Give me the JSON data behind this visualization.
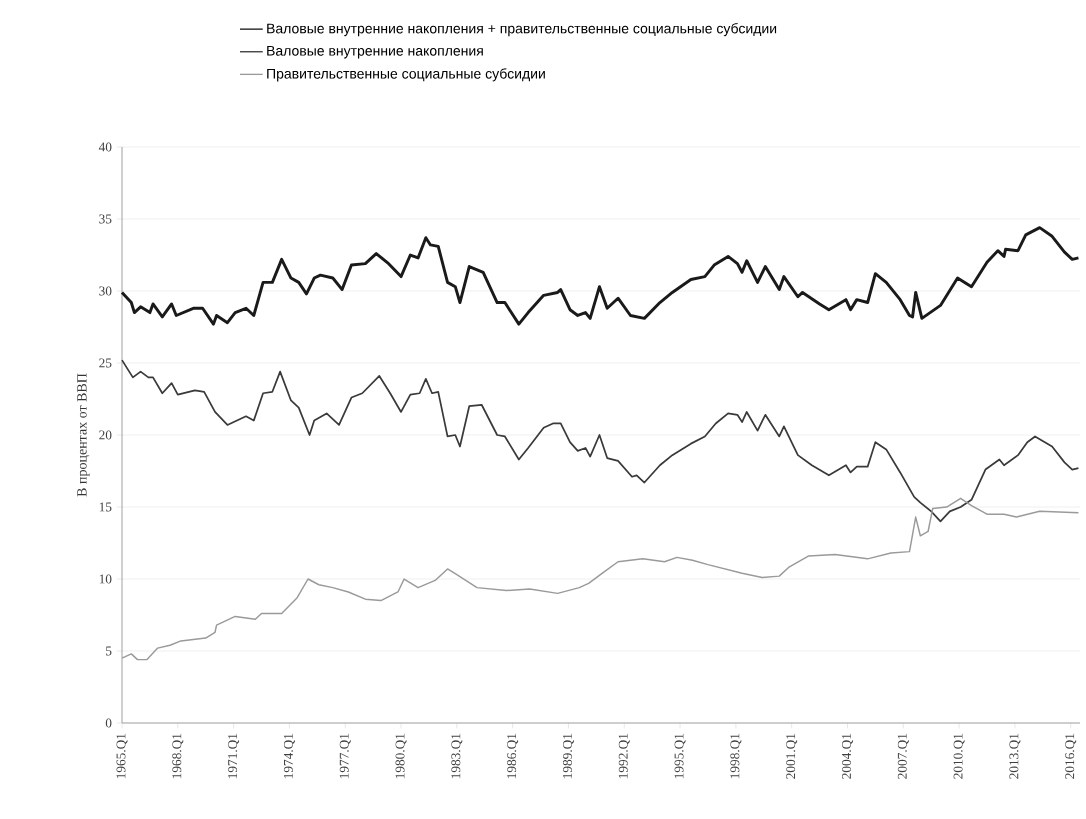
{
  "chart_data": {
    "type": "line",
    "ylabel": "В процентах от ВВП",
    "legend": "top",
    "grid": "y",
    "xlim": [
      "1965-01",
      "2016-07"
    ],
    "ylim": [
      0,
      40
    ],
    "xticks": [
      {
        "value": "1965-01",
        "label": "1965.Q1"
      },
      {
        "value": "1968-01",
        "label": "1968.Q1"
      },
      {
        "value": "1971-01",
        "label": "1971.Q1"
      },
      {
        "value": "1974-01",
        "label": "1974.Q1"
      },
      {
        "value": "1977-01",
        "label": "1977.Q1"
      },
      {
        "value": "1980-01",
        "label": "1980.Q1"
      },
      {
        "value": "1983-01",
        "label": "1983.Q1"
      },
      {
        "value": "1986-01",
        "label": "1986.Q1"
      },
      {
        "value": "1989-01",
        "label": "1989.Q1"
      },
      {
        "value": "1992-01",
        "label": "1992.Q1"
      },
      {
        "value": "1995-01",
        "label": "1995.Q1"
      },
      {
        "value": "1998-01",
        "label": "1998.Q1"
      },
      {
        "value": "2001-01",
        "label": "2001.Q1"
      },
      {
        "value": "2004-01",
        "label": "2004.Q1"
      },
      {
        "value": "2007-01",
        "label": "2007.Q1"
      },
      {
        "value": "2010-01",
        "label": "2010.Q1"
      },
      {
        "value": "2013-01",
        "label": "2013.Q1"
      },
      {
        "value": "2016-01",
        "label": "2016.Q1"
      }
    ],
    "yticks": [
      0,
      5,
      10,
      15,
      20,
      25,
      30,
      35,
      40
    ],
    "series": [
      {
        "name": "Валовые внутренние накопления + правительственные социальные субсидии",
        "color": "#1a1a1a",
        "x": [
          "1965-01",
          "1965-07",
          "1965-09",
          "1966-01",
          "1966-07",
          "1966-09",
          "1967-03",
          "1967-09",
          "1967-12",
          "1968-11",
          "1969-05",
          "1969-12",
          "1970-02",
          "1970-09",
          "1971-02",
          "1971-09",
          "1972-02",
          "1972-08",
          "1973-02",
          "1973-08",
          "1974-02",
          "1974-07",
          "1974-12",
          "1975-05",
          "1975-09",
          "1976-05",
          "1976-11",
          "1977-05",
          "1978-02",
          "1978-09",
          "1979-05",
          "1980-01",
          "1980-07",
          "1980-12",
          "1981-05",
          "1981-08",
          "1982-01",
          "1982-07",
          "1982-12",
          "1983-03",
          "1983-09",
          "1984-06",
          "1985-03",
          "1985-08",
          "1986-05",
          "1986-11",
          "1987-09",
          "1988-06",
          "1988-08",
          "1989-02",
          "1989-07",
          "1989-12",
          "1990-03",
          "1990-09",
          "1991-02",
          "1991-09",
          "1992-05",
          "1993-02",
          "1993-12",
          "1994-08",
          "1995-08",
          "1996-05",
          "1996-11",
          "1997-08",
          "1998-02",
          "1998-05",
          "1998-08",
          "1999-03",
          "1999-08",
          "2000-05",
          "2000-08",
          "2001-05",
          "2001-08",
          "2002-07",
          "2003-01",
          "2003-12",
          "2004-03",
          "2004-07",
          "2005-02",
          "2005-07",
          "2006-02",
          "2006-11",
          "2007-05",
          "2007-07",
          "2007-09",
          "2008-01",
          "2009-01",
          "2009-12",
          "2010-09",
          "2011-07",
          "2012-02",
          "2012-06",
          "2012-07",
          "2013-03",
          "2013-08",
          "2014-05",
          "2015-01",
          "2015-09",
          "2016-02",
          "2016-06"
        ],
        "values": [
          29.9,
          29.2,
          28.5,
          28.9,
          28.5,
          29.1,
          28.2,
          29.1,
          28.3,
          28.8,
          28.8,
          27.7,
          28.3,
          27.8,
          28.5,
          28.8,
          28.3,
          30.6,
          30.6,
          32.2,
          30.9,
          30.6,
          29.8,
          30.9,
          31.1,
          30.9,
          30.1,
          31.8,
          31.9,
          32.6,
          31.9,
          31.0,
          32.5,
          32.3,
          33.7,
          33.2,
          33.1,
          30.6,
          30.3,
          29.2,
          31.7,
          31.3,
          29.2,
          29.2,
          27.7,
          28.5,
          29.7,
          29.9,
          30.1,
          28.7,
          28.3,
          28.5,
          28.1,
          30.3,
          28.8,
          29.5,
          28.3,
          28.1,
          29.2,
          29.9,
          30.8,
          31.0,
          31.8,
          32.4,
          31.9,
          31.3,
          32.1,
          30.6,
          31.7,
          30.1,
          31.0,
          29.6,
          29.9,
          29.1,
          28.7,
          29.4,
          28.7,
          29.4,
          29.2,
          31.2,
          30.6,
          29.4,
          28.3,
          28.2,
          29.9,
          28.1,
          29.0,
          30.9,
          30.3,
          32.0,
          32.8,
          32.4,
          32.9,
          32.8,
          33.9,
          34.4,
          33.8,
          32.7,
          32.2,
          32.3
        ]
      },
      {
        "name": "Валовые внутренние накопления",
        "color": "#3a3a3a",
        "x": [
          "1965-01",
          "1965-08",
          "1966-01",
          "1966-06",
          "1966-09",
          "1967-03",
          "1967-09",
          "1968-01",
          "1968-12",
          "1969-06",
          "1970-01",
          "1970-09",
          "1971-09",
          "1972-02",
          "1972-08",
          "1973-02",
          "1973-07",
          "1974-02",
          "1974-07",
          "1975-02",
          "1975-05",
          "1976-01",
          "1976-09",
          "1977-05",
          "1977-12",
          "1978-11",
          "1979-06",
          "1980-01",
          "1980-07",
          "1981-01",
          "1981-05",
          "1981-09",
          "1982-01",
          "1982-07",
          "1982-12",
          "1983-03",
          "1983-09",
          "1984-05",
          "1985-03",
          "1985-08",
          "1986-05",
          "1986-11",
          "1987-09",
          "1988-03",
          "1988-08",
          "1989-02",
          "1989-07",
          "1989-12",
          "1990-03",
          "1990-09",
          "1991-02",
          "1991-09",
          "1992-06",
          "1992-09",
          "1993-02",
          "1993-12",
          "1994-08",
          "1995-08",
          "1996-05",
          "1996-12",
          "1997-08",
          "1998-02",
          "1998-05",
          "1998-08",
          "1999-03",
          "1999-08",
          "2000-05",
          "2000-08",
          "2001-05",
          "2002-02",
          "2003-01",
          "2003-12",
          "2004-03",
          "2004-07",
          "2005-02",
          "2005-07",
          "2006-02",
          "2006-11",
          "2007-08",
          "2007-12",
          "2008-07",
          "2009-01",
          "2009-07",
          "2010-02",
          "2010-09",
          "2011-06",
          "2012-03",
          "2012-06",
          "2013-03",
          "2013-09",
          "2014-02",
          "2015-01",
          "2015-09",
          "2016-02",
          "2016-06"
        ],
        "values": [
          25.2,
          24.0,
          24.4,
          24.0,
          24.0,
          22.9,
          23.6,
          22.8,
          23.1,
          23.0,
          21.6,
          20.7,
          21.3,
          21.0,
          22.9,
          23.0,
          24.4,
          22.4,
          21.9,
          20.0,
          21.0,
          21.5,
          20.7,
          22.6,
          22.9,
          24.1,
          22.9,
          21.6,
          22.8,
          22.9,
          23.9,
          22.9,
          23.0,
          19.9,
          20.0,
          19.2,
          22.0,
          22.1,
          20.0,
          19.9,
          18.3,
          19.1,
          20.5,
          20.8,
          20.8,
          19.5,
          18.9,
          19.1,
          18.5,
          20.0,
          18.4,
          18.2,
          17.1,
          17.2,
          16.7,
          17.9,
          18.6,
          19.4,
          19.9,
          20.8,
          21.5,
          21.4,
          20.9,
          21.6,
          20.3,
          21.4,
          19.9,
          20.6,
          18.6,
          17.9,
          17.2,
          17.9,
          17.4,
          17.8,
          17.8,
          19.5,
          19.0,
          17.4,
          15.7,
          15.3,
          14.7,
          14.0,
          14.7,
          15.0,
          15.5,
          17.6,
          18.3,
          17.9,
          18.6,
          19.5,
          19.9,
          19.2,
          18.1,
          17.6,
          17.7
        ]
      },
      {
        "name": "Правительственные социальные субсидии",
        "color": "#9a9a9a",
        "x": [
          "1965-01",
          "1965-07",
          "1965-11",
          "1966-05",
          "1966-12",
          "1967-08",
          "1968-03",
          "1969-07",
          "1970-01",
          "1970-02",
          "1971-02",
          "1972-03",
          "1972-07",
          "1973-08",
          "1974-06",
          "1975-01",
          "1975-08",
          "1976-05",
          "1977-03",
          "1978-02",
          "1978-12",
          "1979-11",
          "1980-03",
          "1980-12",
          "1981-11",
          "1982-07",
          "1983-01",
          "1984-02",
          "1985-09",
          "1986-12",
          "1988-06",
          "1989-08",
          "1990-02",
          "1990-12",
          "1991-09",
          "1993-01",
          "1994-03",
          "1994-11",
          "1995-09",
          "1996-07",
          "1998-05",
          "1999-06",
          "2000-05",
          "2000-11",
          "2001-12",
          "2003-05",
          "2005-02",
          "2006-05",
          "2007-05",
          "2007-09",
          "2007-12",
          "2008-05",
          "2008-08",
          "2009-05",
          "2010-02",
          "2010-09",
          "2011-07",
          "2012-06",
          "2013-02",
          "2014-05",
          "2016-06"
        ],
        "values": [
          4.5,
          4.8,
          4.4,
          4.4,
          5.2,
          5.4,
          5.7,
          5.9,
          6.3,
          6.8,
          7.4,
          7.2,
          7.6,
          7.6,
          8.7,
          10.0,
          9.6,
          9.4,
          9.1,
          8.6,
          8.5,
          9.1,
          10.0,
          9.4,
          9.9,
          10.7,
          10.3,
          9.4,
          9.2,
          9.3,
          9.0,
          9.4,
          9.7,
          10.5,
          11.2,
          11.4,
          11.2,
          11.5,
          11.3,
          11.0,
          10.4,
          10.1,
          10.2,
          10.8,
          11.6,
          11.7,
          11.4,
          11.8,
          11.9,
          14.3,
          13.0,
          13.3,
          14.9,
          15.0,
          15.6,
          15.1,
          14.5,
          14.5,
          14.3,
          14.7,
          14.6
        ]
      }
    ]
  }
}
